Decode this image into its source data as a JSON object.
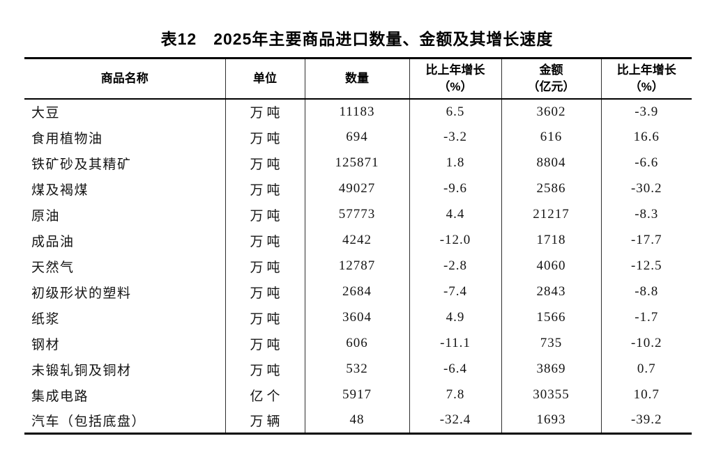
{
  "table": {
    "title": "表12　2025年主要商品进口数量、金额及其增长速度",
    "columns": [
      {
        "label": "商品名称",
        "sub": ""
      },
      {
        "label": "单位",
        "sub": ""
      },
      {
        "label": "数量",
        "sub": ""
      },
      {
        "label": "比上年增长",
        "sub": "（%）"
      },
      {
        "label": "金额",
        "sub": "（亿元）"
      },
      {
        "label": "比上年增长",
        "sub": "（%）"
      }
    ],
    "rows": [
      [
        "大豆",
        "万吨",
        "11183",
        "6.5",
        "3602",
        "-3.9"
      ],
      [
        "食用植物油",
        "万吨",
        "694",
        "-3.2",
        "616",
        "16.6"
      ],
      [
        "铁矿砂及其精矿",
        "万吨",
        "125871",
        "1.8",
        "8804",
        "-6.6"
      ],
      [
        "煤及褐煤",
        "万吨",
        "49027",
        "-9.6",
        "2586",
        "-30.2"
      ],
      [
        "原油",
        "万吨",
        "57773",
        "4.4",
        "21217",
        "-8.3"
      ],
      [
        "成品油",
        "万吨",
        "4242",
        "-12.0",
        "1718",
        "-17.7"
      ],
      [
        "天然气",
        "万吨",
        "12787",
        "-2.8",
        "4060",
        "-12.5"
      ],
      [
        "初级形状的塑料",
        "万吨",
        "2684",
        "-7.4",
        "2843",
        "-8.8"
      ],
      [
        "纸浆",
        "万吨",
        "3604",
        "4.9",
        "1566",
        "-1.7"
      ],
      [
        "钢材",
        "万吨",
        "606",
        "-11.1",
        "735",
        "-10.2"
      ],
      [
        "未锻轧铜及铜材",
        "万吨",
        "532",
        "-6.4",
        "3869",
        "0.7"
      ],
      [
        "集成电路",
        "亿个",
        "5917",
        "7.8",
        "30355",
        "10.7"
      ],
      [
        "汽车（包括底盘）",
        "万辆",
        "48",
        "-32.4",
        "1693",
        "-39.2"
      ]
    ]
  },
  "colors": {
    "background": "#ffffff",
    "text": "#111111",
    "border": "#000000"
  }
}
